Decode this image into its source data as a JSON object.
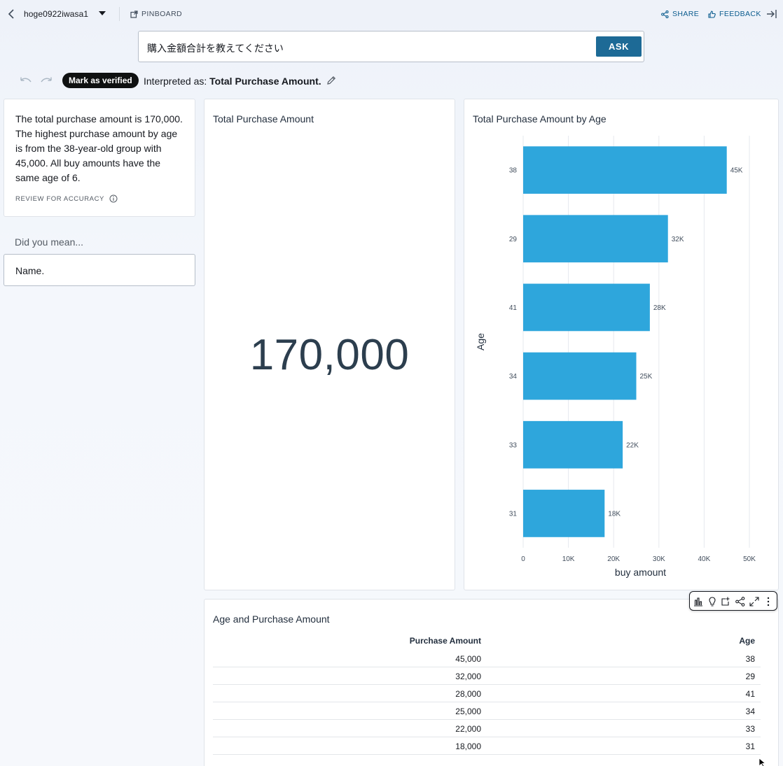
{
  "topbar": {
    "dataset_name": "hoge0922iwasa1",
    "pinboard_label": "PINBOARD",
    "share_label": "SHARE",
    "feedback_label": "FEEDBACK"
  },
  "search": {
    "query": "購入金額合計を教えてください",
    "ask_label": "ASK"
  },
  "interpretation": {
    "verify_label": "Mark as verified",
    "prefix": "Interpreted as:",
    "value": "Total Purchase Amount."
  },
  "summary": {
    "text": "The total purchase amount is 170,000. The highest purchase amount by age is from the 38-year-old group with 45,000. All buy amounts have the same age of 6.",
    "review_label": "REVIEW FOR ACCURACY"
  },
  "did_you_mean": {
    "label": "Did you mean...",
    "suggestion": "Name."
  },
  "kpi": {
    "title": "Total Purchase Amount",
    "value": "170,000"
  },
  "chart_data": {
    "type": "bar",
    "orientation": "horizontal",
    "title": "Total Purchase Amount by Age",
    "xlabel": "buy amount",
    "ylabel": "Age",
    "categories": [
      "38",
      "29",
      "41",
      "34",
      "33",
      "31"
    ],
    "values": [
      45000,
      32000,
      28000,
      25000,
      22000,
      18000
    ],
    "data_labels": [
      "45K",
      "32K",
      "28K",
      "25K",
      "22K",
      "18K"
    ],
    "xlim": [
      0,
      50000
    ],
    "x_ticks": [
      "0",
      "10K",
      "20K",
      "30K",
      "40K",
      "50K"
    ],
    "grid": true,
    "bar_color": "#2ea6dc"
  },
  "table": {
    "title": "Age and Purchase Amount",
    "columns": [
      "Purchase Amount",
      "Age"
    ],
    "rows": [
      [
        "45,000",
        "38"
      ],
      [
        "32,000",
        "29"
      ],
      [
        "28,000",
        "41"
      ],
      [
        "25,000",
        "34"
      ],
      [
        "22,000",
        "33"
      ],
      [
        "18,000",
        "31"
      ]
    ]
  },
  "icons": {
    "back": "chevron-left-icon",
    "caret": "caret-down-icon",
    "pinboard": "external-link-icon",
    "share": "share-icon",
    "feedback": "thumbs-up-icon",
    "collapse": "collapse-right-icon",
    "undo": "undo-icon",
    "redo": "redo-icon",
    "edit": "pencil-icon",
    "info": "info-icon",
    "toolbar": [
      "bar-chart-icon",
      "lightbulb-icon",
      "add-to-pinboard-icon",
      "share-icon",
      "expand-icon",
      "more-vertical-icon"
    ]
  },
  "colors": {
    "accent": "#1d6a96",
    "link": "#0b5c8e",
    "bar": "#2ea6dc",
    "kpi_text": "#2c3e4e"
  }
}
